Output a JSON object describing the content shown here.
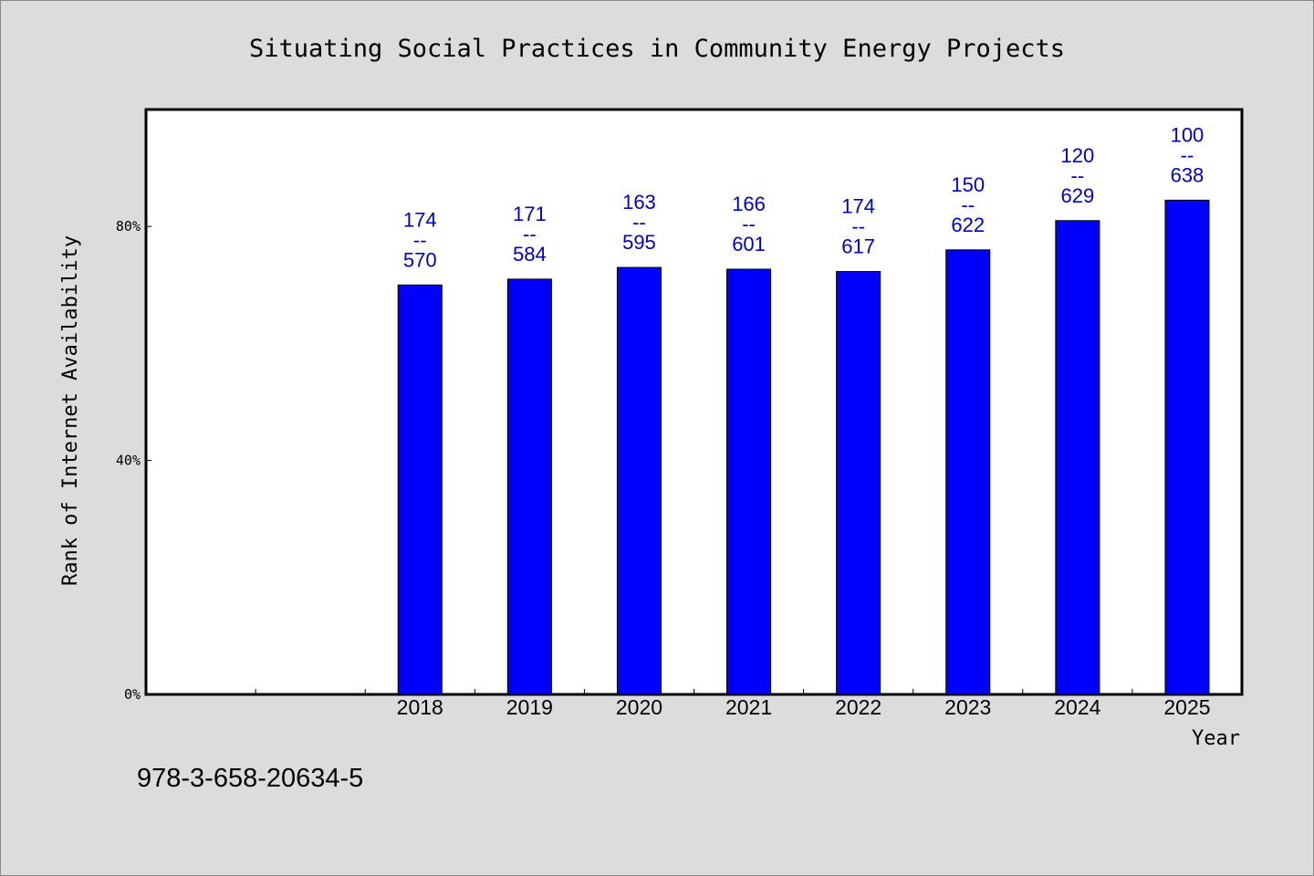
{
  "chart_data": {
    "type": "bar",
    "title": "Situating Social Practices in Community Energy Projects",
    "xlabel": "Year",
    "ylabel": "Rank of Internet Availability",
    "categories": [
      "",
      "",
      "2018",
      "2019",
      "2020",
      "2021",
      "2022",
      "2023",
      "2024",
      "2025"
    ],
    "values": [
      null,
      null,
      70,
      71,
      73,
      72.7,
      72.3,
      76,
      81,
      84.5
    ],
    "labels": [
      null,
      null,
      [
        "174",
        "--",
        "570"
      ],
      [
        "171",
        "--",
        "584"
      ],
      [
        "163",
        "--",
        "595"
      ],
      [
        "166",
        "--",
        "601"
      ],
      [
        "174",
        "--",
        "617"
      ],
      [
        "150",
        "--",
        "622"
      ],
      [
        "120",
        "--",
        "629"
      ],
      [
        "100",
        "--",
        "638"
      ]
    ],
    "ylim": [
      0,
      100
    ],
    "yticks": [
      0,
      40,
      80
    ],
    "ytick_labels": [
      "0%",
      "40%",
      "80%"
    ],
    "bar_color": "#0000ff",
    "label_color": "#0000cc",
    "grid": false,
    "legend": "none"
  },
  "footer_text": "978-3-658-20634-5"
}
